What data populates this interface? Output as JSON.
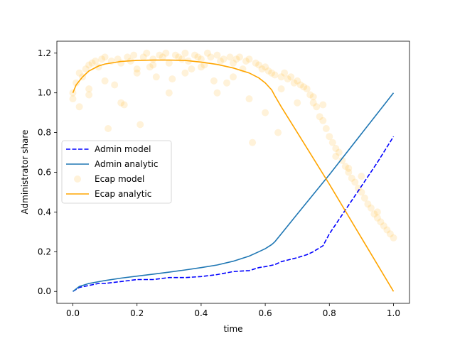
{
  "chart_data": {
    "type": "line",
    "title": "",
    "xlabel": "time",
    "ylabel": "Administrator share",
    "xlim": [
      -0.05,
      1.05
    ],
    "ylim": [
      -0.06,
      1.26
    ],
    "xticks": [
      0.0,
      0.2,
      0.4,
      0.6,
      0.8,
      1.0
    ],
    "yticks": [
      0.0,
      0.2,
      0.4,
      0.6,
      0.8,
      1.0,
      1.2
    ],
    "xtick_labels": [
      "0.0",
      "0.2",
      "0.4",
      "0.6",
      "0.8",
      "1.0"
    ],
    "ytick_labels": [
      "0.0",
      "0.2",
      "0.4",
      "0.6",
      "0.8",
      "1.0",
      "1.2"
    ],
    "grid": false,
    "legend_placement": "center-left",
    "series": [
      {
        "name": "Admin model",
        "kind": "line",
        "style": "dashed",
        "color": "#0000ff",
        "x": [
          0.0,
          0.02,
          0.05,
          0.08,
          0.1,
          0.15,
          0.2,
          0.25,
          0.3,
          0.35,
          0.4,
          0.45,
          0.5,
          0.55,
          0.58,
          0.6,
          0.63,
          0.65,
          0.7,
          0.73,
          0.75,
          0.78,
          0.8,
          0.85,
          0.9,
          0.95,
          1.0
        ],
        "y": [
          0.0,
          0.02,
          0.03,
          0.04,
          0.04,
          0.05,
          0.06,
          0.06,
          0.07,
          0.07,
          0.075,
          0.085,
          0.1,
          0.105,
          0.12,
          0.125,
          0.135,
          0.15,
          0.17,
          0.185,
          0.2,
          0.23,
          0.29,
          0.41,
          0.53,
          0.65,
          0.78
        ]
      },
      {
        "name": "Admin analytic",
        "kind": "line",
        "style": "solid",
        "color": "#1f77b4",
        "x": [
          0.0,
          0.02,
          0.05,
          0.1,
          0.15,
          0.2,
          0.25,
          0.3,
          0.35,
          0.4,
          0.45,
          0.5,
          0.55,
          0.58,
          0.6,
          0.62,
          0.63,
          0.65,
          0.7,
          0.8,
          0.9,
          1.0
        ],
        "y": [
          0.0,
          0.025,
          0.04,
          0.055,
          0.067,
          0.077,
          0.087,
          0.097,
          0.108,
          0.12,
          0.133,
          0.152,
          0.178,
          0.2,
          0.215,
          0.236,
          0.25,
          0.29,
          0.39,
          0.588,
          0.794,
          1.0
        ]
      },
      {
        "name": "Ecap analytic",
        "kind": "line",
        "style": "solid",
        "color": "#ffa500",
        "x": [
          0.0,
          0.01,
          0.03,
          0.05,
          0.08,
          0.1,
          0.15,
          0.2,
          0.25,
          0.3,
          0.35,
          0.4,
          0.45,
          0.5,
          0.55,
          0.58,
          0.6,
          0.62,
          0.63,
          0.65,
          0.7,
          0.8,
          0.9,
          1.0
        ],
        "y": [
          1.0,
          1.04,
          1.08,
          1.11,
          1.135,
          1.145,
          1.158,
          1.163,
          1.165,
          1.165,
          1.163,
          1.155,
          1.143,
          1.125,
          1.1,
          1.075,
          1.05,
          1.015,
          0.985,
          0.93,
          0.8,
          0.54,
          0.27,
          0.0
        ]
      },
      {
        "name": "Ecap model",
        "kind": "scatter",
        "color": "#ffa500",
        "alpha": 0.15,
        "x": [
          0.0,
          0.0,
          0.01,
          0.02,
          0.02,
          0.03,
          0.04,
          0.05,
          0.05,
          0.06,
          0.07,
          0.08,
          0.09,
          0.1,
          0.11,
          0.12,
          0.13,
          0.14,
          0.15,
          0.16,
          0.17,
          0.18,
          0.19,
          0.2,
          0.21,
          0.22,
          0.23,
          0.24,
          0.25,
          0.26,
          0.27,
          0.28,
          0.29,
          0.3,
          0.31,
          0.32,
          0.33,
          0.34,
          0.35,
          0.36,
          0.37,
          0.38,
          0.39,
          0.4,
          0.41,
          0.42,
          0.43,
          0.44,
          0.45,
          0.46,
          0.47,
          0.48,
          0.49,
          0.5,
          0.51,
          0.52,
          0.53,
          0.54,
          0.55,
          0.56,
          0.57,
          0.58,
          0.59,
          0.6,
          0.61,
          0.62,
          0.63,
          0.64,
          0.65,
          0.66,
          0.67,
          0.68,
          0.69,
          0.7,
          0.71,
          0.72,
          0.73,
          0.74,
          0.75,
          0.76,
          0.77,
          0.78,
          0.79,
          0.8,
          0.81,
          0.82,
          0.83,
          0.84,
          0.85,
          0.86,
          0.87,
          0.88,
          0.89,
          0.9,
          0.91,
          0.92,
          0.93,
          0.94,
          0.95,
          0.96,
          0.97,
          0.98,
          0.99,
          1.0,
          0.05,
          0.1,
          0.15,
          0.2,
          0.25,
          0.3,
          0.35,
          0.4,
          0.45,
          0.5,
          0.55,
          0.6,
          0.65,
          0.7,
          0.75,
          0.78,
          0.82,
          0.86,
          0.9,
          0.95
        ],
        "y": [
          1.0,
          0.97,
          1.05,
          1.1,
          0.93,
          1.08,
          1.12,
          1.14,
          0.99,
          1.15,
          1.16,
          1.13,
          1.17,
          1.18,
          0.82,
          1.16,
          1.04,
          1.17,
          1.15,
          0.94,
          1.18,
          1.16,
          1.19,
          1.1,
          0.84,
          1.18,
          1.2,
          1.13,
          1.17,
          1.08,
          1.19,
          1.18,
          1.2,
          1.15,
          1.07,
          1.19,
          1.18,
          1.17,
          1.2,
          1.16,
          1.12,
          1.19,
          1.18,
          1.17,
          1.14,
          1.2,
          1.18,
          1.06,
          1.19,
          1.16,
          1.17,
          1.05,
          1.18,
          1.15,
          1.17,
          1.18,
          1.12,
          1.16,
          1.17,
          0.75,
          1.15,
          1.14,
          1.12,
          1.13,
          1.11,
          1.1,
          1.09,
          0.8,
          1.08,
          1.1,
          1.07,
          1.08,
          1.05,
          1.06,
          1.04,
          1.03,
          1.02,
          0.99,
          0.95,
          0.93,
          0.88,
          0.86,
          0.82,
          0.78,
          0.75,
          0.72,
          0.7,
          0.66,
          0.63,
          0.6,
          0.57,
          0.55,
          0.52,
          0.5,
          0.47,
          0.44,
          0.42,
          0.39,
          0.37,
          0.35,
          0.33,
          0.31,
          0.29,
          0.27,
          1.02,
          1.06,
          0.95,
          1.12,
          1.14,
          1.0,
          1.1,
          1.13,
          1.0,
          1.08,
          0.97,
          0.9,
          1.02,
          0.95,
          0.98,
          0.94,
          0.68,
          0.62,
          0.58,
          0.4
        ]
      }
    ],
    "legend": [
      {
        "label": "Admin model",
        "series": 0
      },
      {
        "label": "Admin analytic",
        "series": 1
      },
      {
        "label": "Ecap model",
        "series": 3
      },
      {
        "label": "Ecap analytic",
        "series": 2
      }
    ]
  }
}
